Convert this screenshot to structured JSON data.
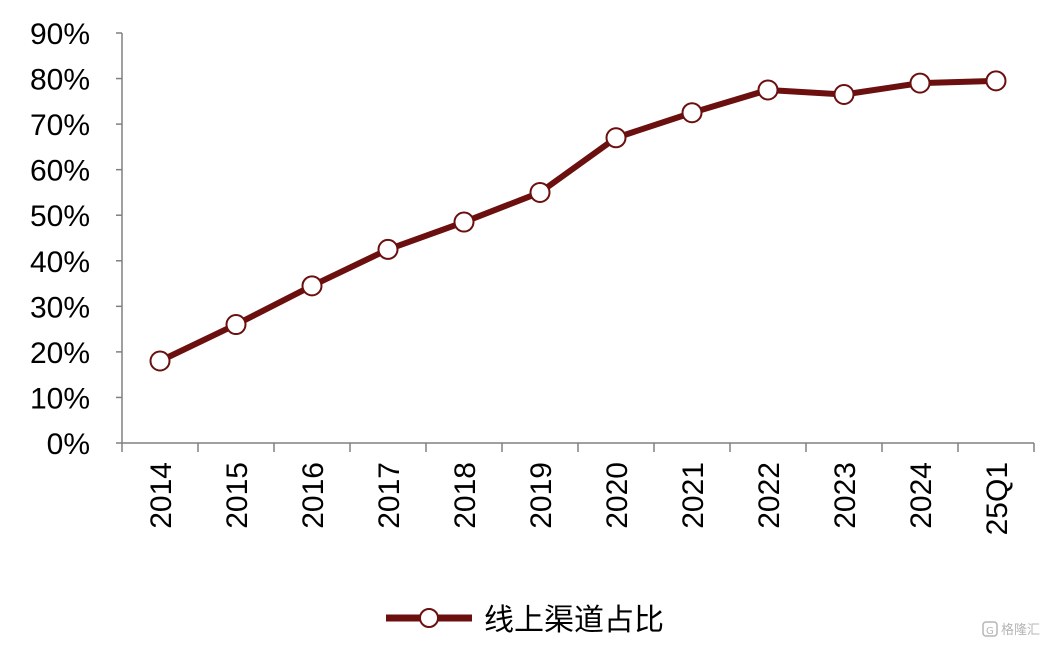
{
  "chart_data": {
    "type": "line",
    "categories": [
      "2014",
      "2015",
      "2016",
      "2017",
      "2018",
      "2019",
      "2020",
      "2021",
      "2022",
      "2023",
      "2024",
      "25Q1"
    ],
    "series": [
      {
        "name": "线上渠道占比",
        "values": [
          18,
          26,
          34.5,
          42.5,
          48.5,
          55,
          67,
          72.5,
          77.5,
          76.5,
          79,
          79.5
        ]
      }
    ],
    "y_ticks": [
      "0%",
      "10%",
      "20%",
      "30%",
      "40%",
      "50%",
      "60%",
      "70%",
      "80%",
      "90%"
    ],
    "ylim": [
      0,
      90
    ],
    "title": "",
    "xlabel": "",
    "ylabel": "",
    "grid": false,
    "legend": "bottom-center",
    "line_color": "#6b0f0f"
  },
  "watermark": {
    "text": "格隆汇"
  }
}
